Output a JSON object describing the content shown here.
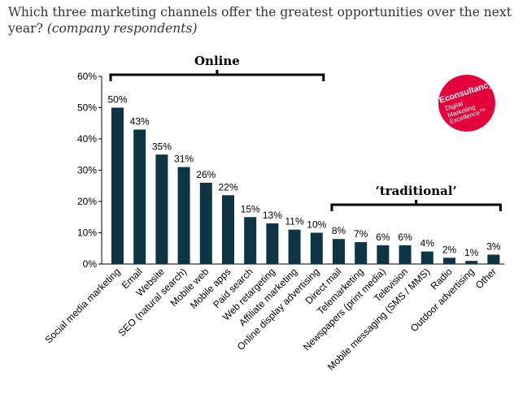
{
  "header": {
    "title": "Which three marketing channels offer the greatest opportunities over the next year?",
    "subtitle": "(company respondents)"
  },
  "logo": {
    "brand": "Econsultancy",
    "line1": "Digital",
    "line2": "Marketing",
    "line3": "Excellence™",
    "color": "#e4003a"
  },
  "chart_data": {
    "type": "bar",
    "categories": [
      "Social media marketing",
      "Email",
      "Website",
      "SEO (natural search)",
      "Mobile web",
      "Mobile apps",
      "Paid search",
      "Web retargeting",
      "Affiliate marketing",
      "Online display advertising",
      "Direct mail",
      "Telemarketing",
      "Newspapers (print media)",
      "Television",
      "Mobile messaging (SMS / MMS)",
      "Radio",
      "Outdoor advertising",
      "Other"
    ],
    "values": [
      50,
      43,
      35,
      31,
      26,
      22,
      15,
      13,
      11,
      10,
      8,
      7,
      6,
      6,
      4,
      2,
      1,
      3
    ],
    "data_labels": [
      "50%",
      "43%",
      "35%",
      "31%",
      "26%",
      "22%",
      "15%",
      "13%",
      "11%",
      "10%",
      "8%",
      "7%",
      "6%",
      "6%",
      "4%",
      "2%",
      "1%",
      "3%"
    ],
    "yticks": [
      "0%",
      "10%",
      "20%",
      "30%",
      "40%",
      "50%",
      "60%"
    ],
    "ylim": [
      0,
      60
    ],
    "bar_color": "#0d3543",
    "grid": false,
    "annotations": [
      {
        "text": "Online",
        "from": 0,
        "to": 9,
        "style": "bold"
      },
      {
        "text": "‘traditional’",
        "from": 10,
        "to": 17,
        "style": "bold"
      }
    ]
  }
}
